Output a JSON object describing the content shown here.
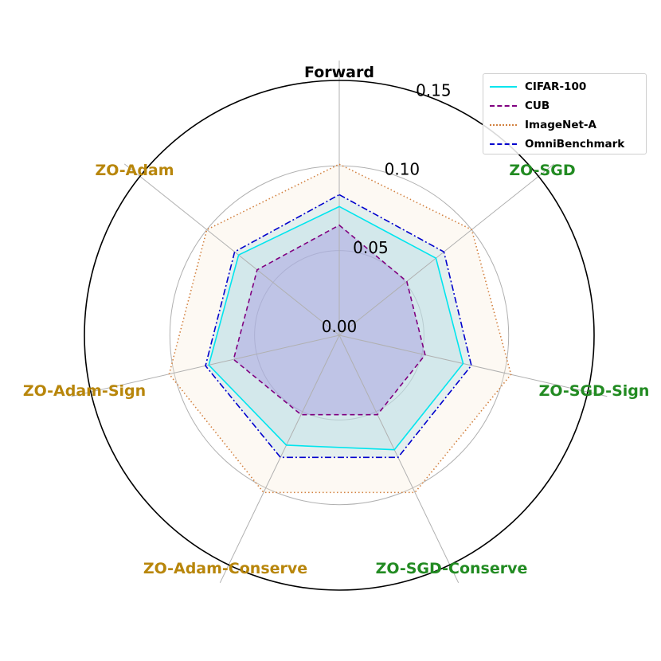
{
  "chart_data": {
    "type": "radar",
    "axes": [
      "Forward",
      "ZO-SGD",
      "ZO-SGD-Sign",
      "ZO-SGD-Conserve",
      "ZO-Adam-Conserve",
      "ZO-Adam-Sign",
      "ZO-Adam"
    ],
    "axis_label_colors": [
      "#000000",
      "#228b22",
      "#228b22",
      "#228b22",
      "#b8860b",
      "#b8860b",
      "#b8860b"
    ],
    "rlim": [
      0,
      0.15
    ],
    "r_ticks": [
      0.0,
      0.05,
      0.1,
      0.15
    ],
    "r_tick_labels": [
      "0.00",
      "0.05",
      "0.10",
      "0.15"
    ],
    "grid": true,
    "legend_position": "top-right",
    "series": [
      {
        "name": "CIFAR-100",
        "color": "#00e5ee",
        "dash": "solid",
        "fill": "#ADD8E6",
        "values": [
          0.076,
          0.073,
          0.075,
          0.075,
          0.072,
          0.079,
          0.076
        ]
      },
      {
        "name": "CUB",
        "color": "#800080",
        "dash": "dashed",
        "fill": "#9370DB",
        "values": [
          0.065,
          0.051,
          0.052,
          0.052,
          0.052,
          0.064,
          0.062
        ]
      },
      {
        "name": "ImageNet-A",
        "color": "#d2803f",
        "dash": "dotted",
        "fill": "#FAEBD7",
        "values": [
          0.101,
          0.1,
          0.104,
          0.103,
          0.103,
          0.103,
          0.1
        ]
      },
      {
        "name": "OmniBenchmark",
        "color": "#0000cd",
        "dash": "dashdot",
        "fill": "#ADD8E6",
        "values": [
          0.083,
          0.079,
          0.08,
          0.08,
          0.08,
          0.081,
          0.079
        ]
      }
    ]
  }
}
